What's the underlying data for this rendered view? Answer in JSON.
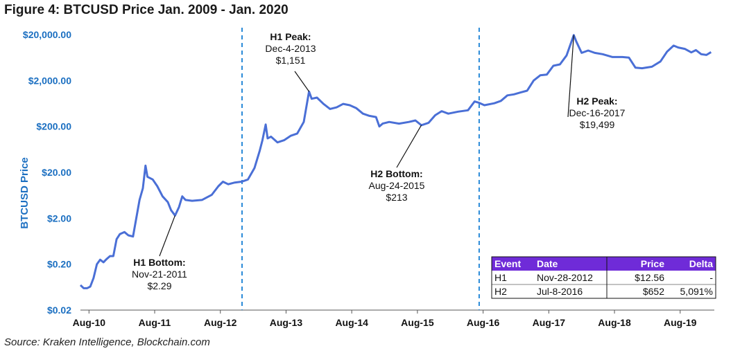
{
  "title": "Figure 4: BTCUSD Price Jan. 2009 - Jan. 2020",
  "source": "Source: Kraken Intelligence, Blockchain.com",
  "colors": {
    "line": "#4a6fd6",
    "axis_label": "#1b6fc1",
    "divider": "#2a8ad8",
    "table_header": "#6f2bd8"
  },
  "chart_data": {
    "type": "line",
    "title": "Figure 4: BTCUSD Price Jan. 2009 - Jan. 2020",
    "ylabel": "BTCUSD Price",
    "xlabel": "",
    "yscale": "log",
    "ylim": [
      0.02,
      20000
    ],
    "xlim": [
      2010.45,
      2020.1
    ],
    "y_ticks": [
      {
        "value": 20000,
        "label": "$20,000.00"
      },
      {
        "value": 2000,
        "label": "$2,000.00"
      },
      {
        "value": 200,
        "label": "$200.00"
      },
      {
        "value": 20,
        "label": "$20.00"
      },
      {
        "value": 2,
        "label": "$2.00"
      },
      {
        "value": 0.2,
        "label": "$0.20"
      },
      {
        "value": 0.02,
        "label": "$0.02"
      }
    ],
    "x_ticks": [
      {
        "value": 2010.58,
        "label": "Aug-10"
      },
      {
        "value": 2011.58,
        "label": "Aug-11"
      },
      {
        "value": 2012.58,
        "label": "Aug-12"
      },
      {
        "value": 2013.58,
        "label": "Aug-13"
      },
      {
        "value": 2014.58,
        "label": "Aug-14"
      },
      {
        "value": 2015.58,
        "label": "Aug-15"
      },
      {
        "value": 2016.58,
        "label": "Aug-16"
      },
      {
        "value": 2017.58,
        "label": "Aug-17"
      },
      {
        "value": 2018.58,
        "label": "Aug-18"
      },
      {
        "value": 2019.58,
        "label": "Aug-19"
      }
    ],
    "series": [
      {
        "name": "BTCUSD",
        "points": [
          [
            2010.45,
            0.07
          ],
          [
            2010.5,
            0.06
          ],
          [
            2010.55,
            0.06
          ],
          [
            2010.6,
            0.065
          ],
          [
            2010.65,
            0.1
          ],
          [
            2010.7,
            0.2
          ],
          [
            2010.75,
            0.25
          ],
          [
            2010.8,
            0.22
          ],
          [
            2010.85,
            0.26
          ],
          [
            2010.9,
            0.3
          ],
          [
            2010.95,
            0.3
          ],
          [
            2011.0,
            0.7
          ],
          [
            2011.05,
            0.9
          ],
          [
            2011.12,
            1.0
          ],
          [
            2011.18,
            0.85
          ],
          [
            2011.25,
            0.8
          ],
          [
            2011.3,
            2.0
          ],
          [
            2011.35,
            5.0
          ],
          [
            2011.4,
            9.0
          ],
          [
            2011.44,
            28.0
          ],
          [
            2011.47,
            16.0
          ],
          [
            2011.55,
            14.0
          ],
          [
            2011.62,
            10.0
          ],
          [
            2011.7,
            6.0
          ],
          [
            2011.78,
            4.5
          ],
          [
            2011.83,
            3.0
          ],
          [
            2011.89,
            2.29
          ],
          [
            2011.95,
            3.5
          ],
          [
            2012.0,
            6.0
          ],
          [
            2012.05,
            5.0
          ],
          [
            2012.15,
            4.8
          ],
          [
            2012.3,
            5.0
          ],
          [
            2012.45,
            6.5
          ],
          [
            2012.55,
            10.0
          ],
          [
            2012.62,
            12.5
          ],
          [
            2012.7,
            11.0
          ],
          [
            2012.8,
            12.0
          ],
          [
            2012.91,
            12.56
          ],
          [
            2013.0,
            14.0
          ],
          [
            2013.1,
            25.0
          ],
          [
            2013.18,
            60.0
          ],
          [
            2013.22,
            100.0
          ],
          [
            2013.27,
            220.0
          ],
          [
            2013.3,
            110.0
          ],
          [
            2013.35,
            120.0
          ],
          [
            2013.45,
            90.0
          ],
          [
            2013.55,
            100.0
          ],
          [
            2013.65,
            125.0
          ],
          [
            2013.75,
            140.0
          ],
          [
            2013.85,
            250.0
          ],
          [
            2013.93,
            1151.0
          ],
          [
            2013.97,
            800.0
          ],
          [
            2014.05,
            850.0
          ],
          [
            2014.15,
            620.0
          ],
          [
            2014.25,
            480.0
          ],
          [
            2014.35,
            520.0
          ],
          [
            2014.45,
            620.0
          ],
          [
            2014.55,
            580.0
          ],
          [
            2014.65,
            500.0
          ],
          [
            2014.75,
            380.0
          ],
          [
            2014.85,
            340.0
          ],
          [
            2014.95,
            320.0
          ],
          [
            2015.0,
            200.0
          ],
          [
            2015.05,
            230.0
          ],
          [
            2015.15,
            250.0
          ],
          [
            2015.3,
            230.0
          ],
          [
            2015.45,
            250.0
          ],
          [
            2015.55,
            270.0
          ],
          [
            2015.64,
            213.0
          ],
          [
            2015.75,
            240.0
          ],
          [
            2015.85,
            350.0
          ],
          [
            2015.95,
            430.0
          ],
          [
            2016.05,
            380.0
          ],
          [
            2016.2,
            420.0
          ],
          [
            2016.35,
            450.0
          ],
          [
            2016.45,
            700.0
          ],
          [
            2016.52,
            652.0
          ],
          [
            2016.6,
            580.0
          ],
          [
            2016.75,
            640.0
          ],
          [
            2016.85,
            720.0
          ],
          [
            2016.95,
            950.0
          ],
          [
            2017.05,
            1000.0
          ],
          [
            2017.15,
            1100.0
          ],
          [
            2017.25,
            1200.0
          ],
          [
            2017.35,
            2000.0
          ],
          [
            2017.45,
            2600.0
          ],
          [
            2017.55,
            2700.0
          ],
          [
            2017.65,
            4200.0
          ],
          [
            2017.75,
            4500.0
          ],
          [
            2017.85,
            7000.0
          ],
          [
            2017.96,
            19499.0
          ],
          [
            2018.0,
            14000.0
          ],
          [
            2018.08,
            8000.0
          ],
          [
            2018.18,
            9000.0
          ],
          [
            2018.28,
            8000.0
          ],
          [
            2018.4,
            7500.0
          ],
          [
            2018.55,
            6500.0
          ],
          [
            2018.7,
            6500.0
          ],
          [
            2018.8,
            6300.0
          ],
          [
            2018.9,
            3800.0
          ],
          [
            2019.0,
            3700.0
          ],
          [
            2019.15,
            4000.0
          ],
          [
            2019.28,
            5200.0
          ],
          [
            2019.38,
            8500.0
          ],
          [
            2019.48,
            11500.0
          ],
          [
            2019.55,
            10500.0
          ],
          [
            2019.65,
            9800.0
          ],
          [
            2019.75,
            8200.0
          ],
          [
            2019.82,
            9200.0
          ],
          [
            2019.9,
            7500.0
          ],
          [
            2019.98,
            7200.0
          ],
          [
            2020.05,
            8300.0
          ]
        ]
      }
    ],
    "vlines": [
      2012.91,
      2016.52
    ],
    "annotations": [
      {
        "id": "h1-bottom",
        "x": 2011.89,
        "y": 2.29,
        "lines": [
          "H1 Bottom:",
          "Nov-21-2011",
          "$2.29"
        ]
      },
      {
        "id": "h1-peak",
        "x": 2013.93,
        "y": 1151,
        "lines": [
          "H1 Peak:",
          "Dec-4-2013",
          "$1,151"
        ]
      },
      {
        "id": "h2-bottom",
        "x": 2015.64,
        "y": 213,
        "lines": [
          "H2 Bottom:",
          "Aug-24-2015",
          "$213"
        ]
      },
      {
        "id": "h2-peak",
        "x": 2017.96,
        "y": 19499,
        "lines": [
          "H2 Peak:",
          "Dec-16-2017",
          "$19,499"
        ]
      }
    ],
    "table": {
      "headers": [
        "Event",
        "Date",
        "Price",
        "Delta"
      ],
      "rows": [
        [
          "H1",
          "Nov-28-2012",
          "$12.56",
          "-"
        ],
        [
          "H2",
          "Jul-8-2016",
          "$652",
          "5,091%"
        ]
      ]
    }
  }
}
